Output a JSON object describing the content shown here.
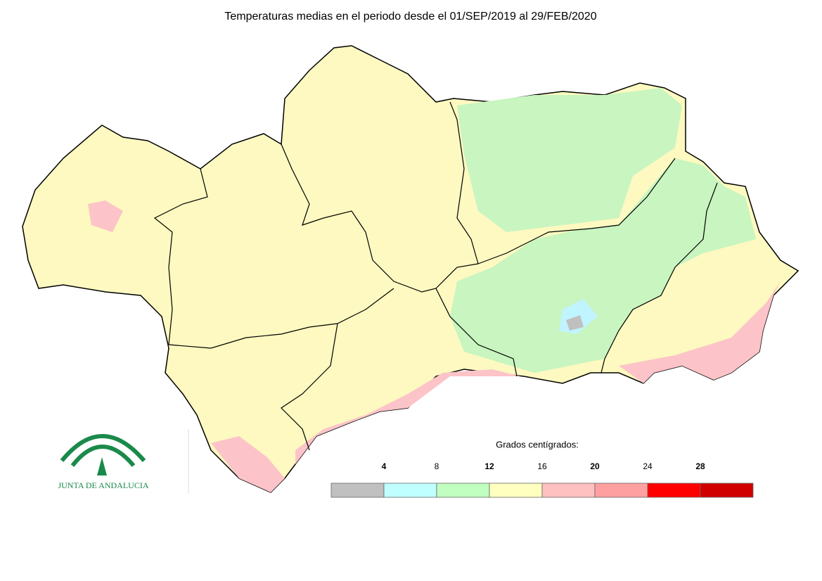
{
  "title": "Temperaturas medias en el periodo desde el 01/SEP/2019 al 29/FEB/2020",
  "legend": {
    "title": "Grados centígrados:",
    "ticks": [
      4,
      8,
      12,
      16,
      20,
      24,
      28
    ],
    "colors": [
      "#c0c0c0",
      "#c0ffff",
      "#c0ffc0",
      "#ffffc0",
      "#ffc0c0",
      "#ffa0a0",
      "#ff0000",
      "#d00000"
    ]
  },
  "logo": {
    "text": "JUNTA DE ANDALUCIA"
  }
}
